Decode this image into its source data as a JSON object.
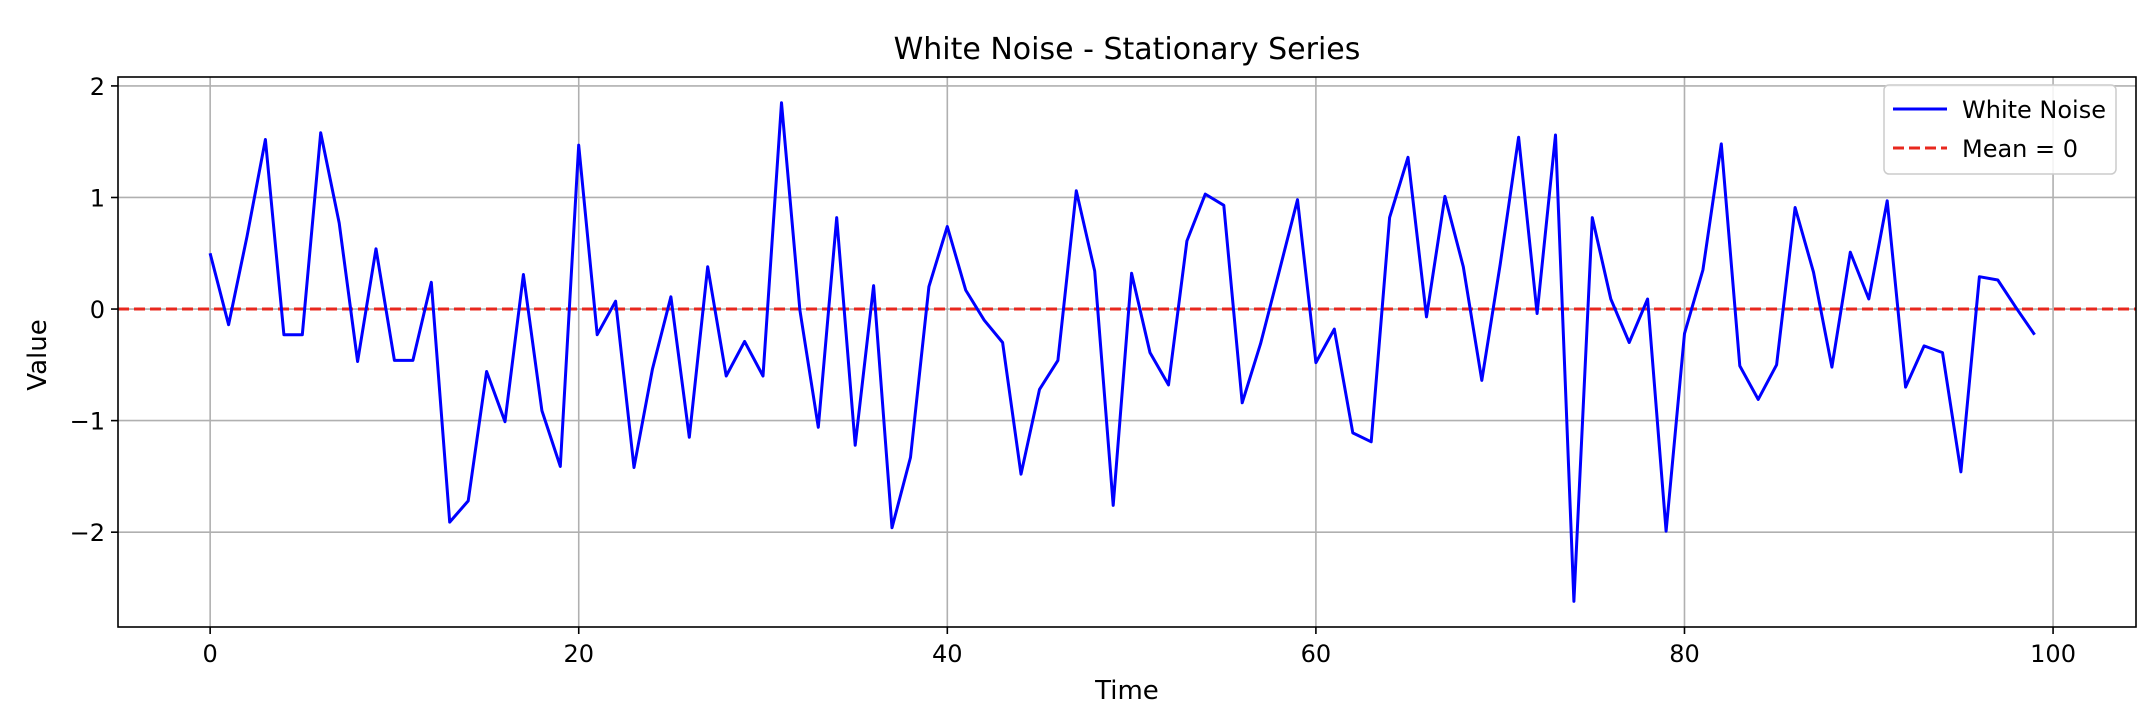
{
  "chart_data": {
    "type": "line",
    "title": "White Noise - Stationary Series",
    "xlabel": "Time",
    "ylabel": "Value",
    "xlim": [
      -5,
      104.5
    ],
    "ylim": [
      -2.85,
      2.08
    ],
    "xticks": [
      0,
      20,
      40,
      60,
      80,
      100
    ],
    "yticks": [
      2,
      1,
      0,
      -1,
      -2
    ],
    "xtick_labels": [
      "0",
      "20",
      "40",
      "60",
      "80",
      "100"
    ],
    "ytick_labels": [
      "2",
      "1",
      "0",
      "−1",
      "−2"
    ],
    "grid": true,
    "legend_position": "top-right",
    "series": [
      {
        "name": "White Noise",
        "color": "#0000ff",
        "style": "solid",
        "x": [
          0,
          1,
          2,
          3,
          4,
          5,
          6,
          7,
          8,
          9,
          10,
          11,
          12,
          13,
          14,
          15,
          16,
          17,
          18,
          19,
          20,
          21,
          22,
          23,
          24,
          25,
          26,
          27,
          28,
          29,
          30,
          31,
          32,
          33,
          34,
          35,
          36,
          37,
          38,
          39,
          40,
          41,
          42,
          43,
          44,
          45,
          46,
          47,
          48,
          49,
          50,
          51,
          52,
          53,
          54,
          55,
          56,
          57,
          58,
          59,
          60,
          61,
          62,
          63,
          64,
          65,
          66,
          67,
          68,
          69,
          70,
          71,
          72,
          73,
          74,
          75,
          76,
          77,
          78,
          79,
          80,
          81,
          82,
          83,
          84,
          85,
          86,
          87,
          88,
          89,
          90,
          91,
          92,
          93,
          94,
          95,
          96,
          97,
          98,
          99
        ],
        "y": [
          0.5,
          -0.14,
          0.65,
          1.52,
          -0.23,
          -0.23,
          1.58,
          0.77,
          -0.47,
          0.54,
          -0.46,
          -0.46,
          0.24,
          -1.91,
          -1.72,
          -0.56,
          -1.01,
          0.31,
          -0.91,
          -1.41,
          1.47,
          -0.23,
          0.07,
          -1.42,
          -0.54,
          0.11,
          -1.15,
          0.38,
          -0.6,
          -0.29,
          -0.6,
          1.85,
          -0.01,
          -1.06,
          0.82,
          -1.22,
          0.21,
          -1.96,
          -1.33,
          0.2,
          0.74,
          0.17,
          -0.1,
          -0.3,
          -1.48,
          -0.72,
          -0.46,
          1.06,
          0.34,
          -1.76,
          0.32,
          -0.39,
          -0.68,
          0.61,
          1.03,
          0.93,
          -0.84,
          -0.31,
          0.33,
          0.98,
          -0.48,
          -0.18,
          -1.11,
          -1.19,
          0.82,
          1.36,
          -0.07,
          1.01,
          0.38,
          -0.64,
          0.4,
          1.54,
          -0.04,
          1.56,
          -2.62,
          0.82,
          0.09,
          -0.3,
          0.09,
          -1.99,
          -0.22,
          0.35,
          1.48,
          -0.51,
          -0.81,
          -0.5,
          0.91,
          0.33,
          -0.52,
          0.51,
          0.09,
          0.97,
          -0.7,
          -0.33,
          -0.39,
          -1.46,
          0.29,
          0.26,
          0.01,
          -0.23
        ]
      },
      {
        "name": "Mean = 0",
        "color": "#e8281e",
        "style": "dashed",
        "hline": 0
      }
    ]
  }
}
